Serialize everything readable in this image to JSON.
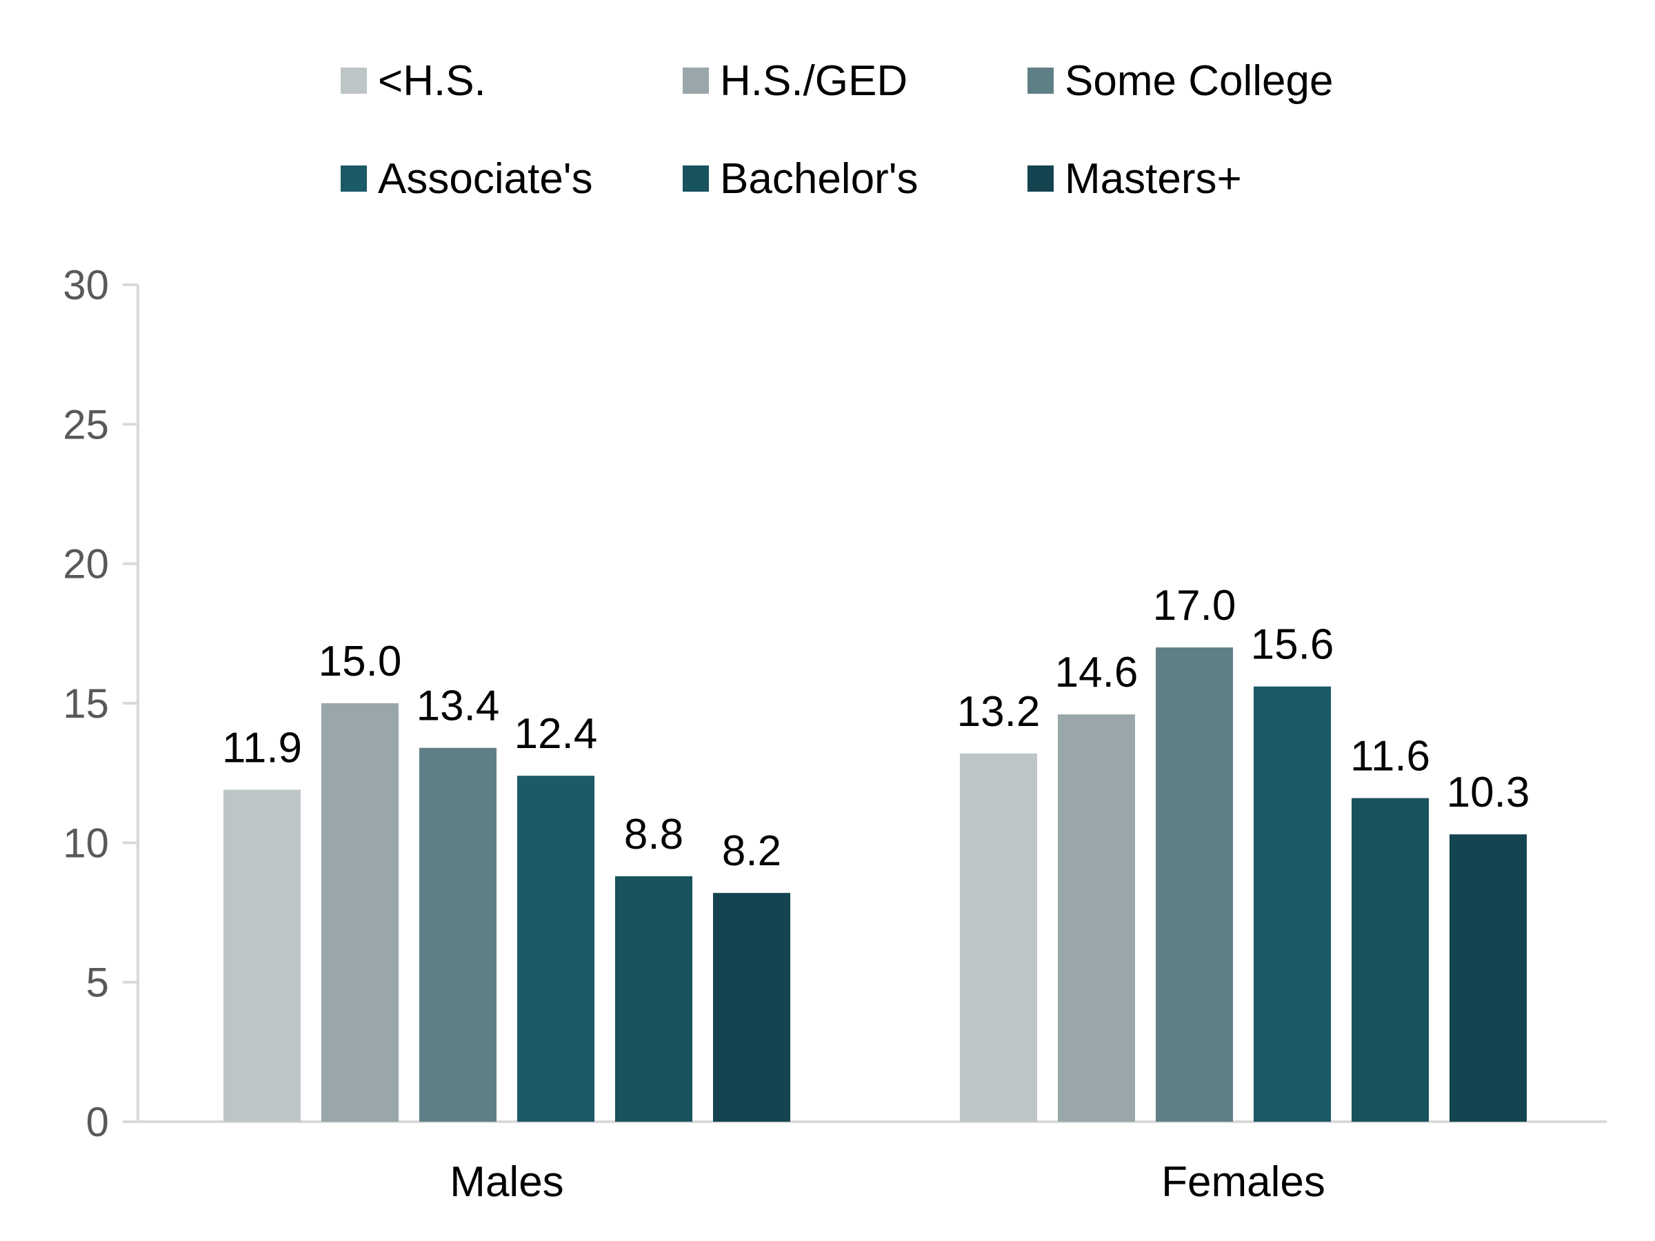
{
  "chart_data": {
    "type": "bar",
    "title": "",
    "xlabel": "",
    "ylabel": "",
    "ylim": [
      0,
      30
    ],
    "yticks": [
      0,
      5,
      10,
      15,
      20,
      25,
      30
    ],
    "categories": [
      "Males",
      "Females"
    ],
    "grid": false,
    "legend_position": "top",
    "series": [
      {
        "name": "<H.S.",
        "color": "#BDC5C7",
        "values": [
          11.9,
          13.2
        ],
        "labels": [
          "11.9",
          "13.2"
        ]
      },
      {
        "name": "H.S./GED",
        "color": "#99A7AA",
        "values": [
          15.0,
          14.6
        ],
        "labels": [
          "15.0",
          "14.6"
        ]
      },
      {
        "name": "Some College",
        "color": "#5F7F86",
        "values": [
          13.4,
          17.0
        ],
        "labels": [
          "13.4",
          "17.0"
        ]
      },
      {
        "name": "Associate's",
        "color": "#1B5A66",
        "values": [
          12.4,
          15.6
        ],
        "labels": [
          "12.4",
          "15.6"
        ]
      },
      {
        "name": "Bachelor's",
        "color": "#18525C",
        "values": [
          8.8,
          11.6
        ],
        "labels": [
          "8.8",
          "11.6"
        ]
      },
      {
        "name": "Masters+",
        "color": "#14444F",
        "values": [
          8.2,
          10.3
        ],
        "labels": [
          "8.2",
          "10.3"
        ]
      }
    ],
    "axis_color": "#D9D9D9"
  }
}
